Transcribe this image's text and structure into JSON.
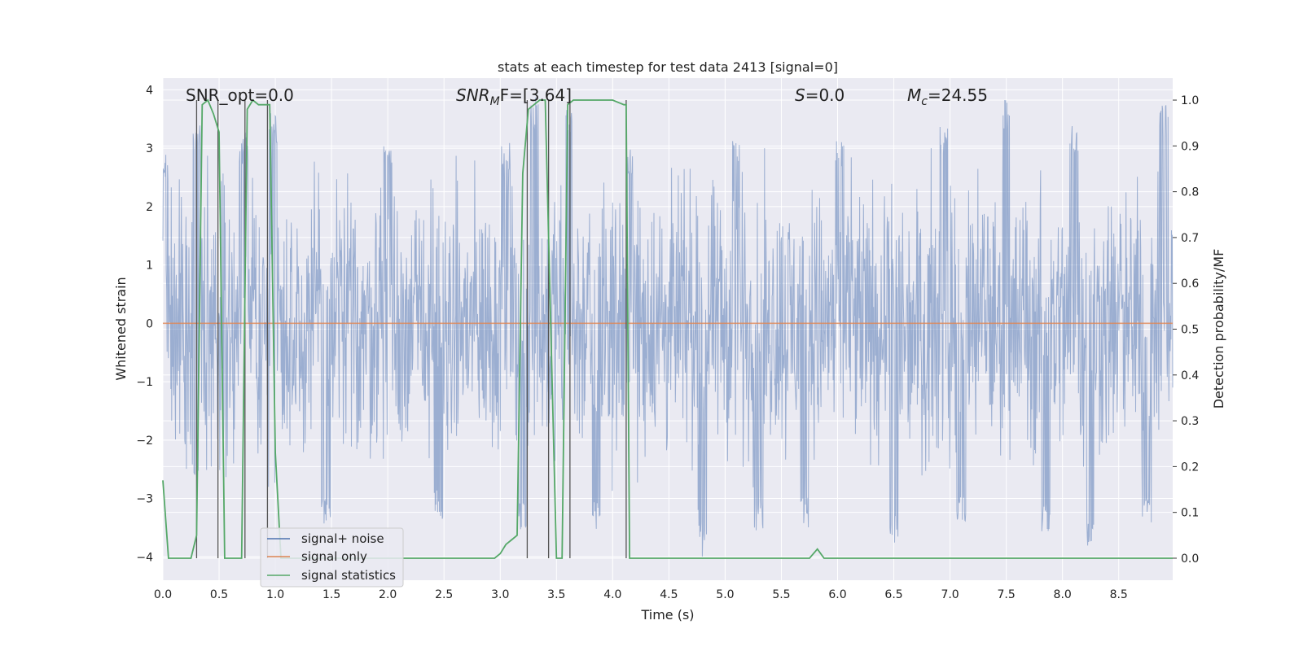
{
  "chart_data": {
    "type": "line",
    "title": "stats at each timestep for test data 2413 [signal=0]",
    "xlabel": "Time (s)",
    "ylabel": "Whitened strain",
    "y2label": "Detection probability/MF",
    "xlim": [
      0.0,
      8.98
    ],
    "ylim": [
      -4.4,
      4.2
    ],
    "y2lim": [
      -0.048,
      1.048
    ],
    "x_ticks": [
      "0.0",
      "0.5",
      "1.0",
      "1.5",
      "2.0",
      "2.5",
      "3.0",
      "3.5",
      "4.0",
      "4.5",
      "5.0",
      "5.5",
      "6.0",
      "6.5",
      "7.0",
      "7.5",
      "8.0",
      "8.5"
    ],
    "y_ticks": [
      "4",
      "3",
      "2",
      "1",
      "0",
      "−1",
      "−2",
      "−3",
      "−4"
    ],
    "y2_ticks": [
      "1.0",
      "0.9",
      "0.8",
      "0.7",
      "0.6",
      "0.5",
      "0.4",
      "0.3",
      "0.2",
      "0.1",
      "0.0"
    ],
    "grid": true,
    "legend_position": "lower-left",
    "legend": [
      "signal+ noise",
      "signal only",
      "signal statistics"
    ],
    "annotations": {
      "snr_opt": "SNR_opt=0.0",
      "snr_mf_sym": "SNR",
      "snr_mf_sub": "M",
      "snr_mf_rest": "F=[3.64]",
      "s_sym": "S",
      "s_rest": "=0.0",
      "mc_sym": "M",
      "mc_sub": "c",
      "mc_rest": "=24.55"
    },
    "colors": {
      "signal_noise": "#4c72b0",
      "signal_only": "#dd8452",
      "signal_statistics": "#55a868",
      "vlines": "#555555",
      "axes_bg": "#eaeaf2",
      "grid": "#ffffff"
    },
    "series": [
      {
        "name": "signal+ noise",
        "note_envelope": "dense noise trace sampled across full time range",
        "peak_high": [
          [
            0.02,
            2.9
          ],
          [
            0.3,
            3.45
          ],
          [
            0.72,
            3.25
          ],
          [
            0.98,
            3.6
          ],
          [
            2.0,
            3.1
          ],
          [
            3.05,
            3.1
          ],
          [
            3.3,
            3.9
          ],
          [
            3.6,
            3.7
          ],
          [
            4.15,
            3.0
          ],
          [
            5.1,
            3.15
          ],
          [
            6.02,
            3.15
          ],
          [
            6.95,
            3.4
          ],
          [
            7.5,
            3.85
          ],
          [
            8.1,
            3.4
          ],
          [
            8.9,
            3.75
          ]
        ],
        "peak_low": [
          [
            0.3,
            -2.8
          ],
          [
            1.45,
            -3.45
          ],
          [
            2.45,
            -3.35
          ],
          [
            3.2,
            -3.55
          ],
          [
            3.85,
            -3.55
          ],
          [
            4.8,
            -4.0
          ],
          [
            5.3,
            -3.55
          ],
          [
            5.7,
            -3.5
          ],
          [
            6.5,
            -3.8
          ],
          [
            7.1,
            -3.4
          ],
          [
            7.85,
            -3.6
          ],
          [
            8.25,
            -3.9
          ],
          [
            8.75,
            -3.45
          ]
        ]
      },
      {
        "name": "signal only",
        "x": [
          0.0,
          8.98
        ],
        "y": [
          0.0,
          0.0
        ]
      },
      {
        "name": "signal statistics",
        "x": [
          0.0,
          0.05,
          0.12,
          0.2,
          0.25,
          0.3,
          0.35,
          0.4,
          0.45,
          0.5,
          0.55,
          0.6,
          0.65,
          0.7,
          0.75,
          0.8,
          0.85,
          0.9,
          0.95,
          1.0,
          1.05,
          2.9,
          2.95,
          3.0,
          3.05,
          3.1,
          3.15,
          3.2,
          3.25,
          3.3,
          3.35,
          3.4,
          3.45,
          3.5,
          3.55,
          3.6,
          3.65,
          3.7,
          4.0,
          4.1,
          4.12,
          4.15,
          4.2,
          4.25,
          5.75,
          5.82,
          5.88,
          5.95,
          6.0,
          8.98
        ],
        "y": [
          0.17,
          0.0,
          0.0,
          0.0,
          0.0,
          0.05,
          0.99,
          1.0,
          0.97,
          0.93,
          0.0,
          0.0,
          0.0,
          0.0,
          0.98,
          1.0,
          0.99,
          0.99,
          0.99,
          0.23,
          0.0,
          0.0,
          0.0,
          0.01,
          0.03,
          0.04,
          0.05,
          0.84,
          0.98,
          0.99,
          1.0,
          1.0,
          0.5,
          0.0,
          0.0,
          0.99,
          1.0,
          1.0,
          1.0,
          0.99,
          0.99,
          0.0,
          0.0,
          0.0,
          0.0,
          0.02,
          0.0,
          0.0,
          0.0,
          0.0
        ]
      }
    ],
    "vlines_x": [
      0.3,
      0.49,
      0.73,
      0.93,
      3.24,
      3.43,
      3.62,
      4.12
    ]
  }
}
